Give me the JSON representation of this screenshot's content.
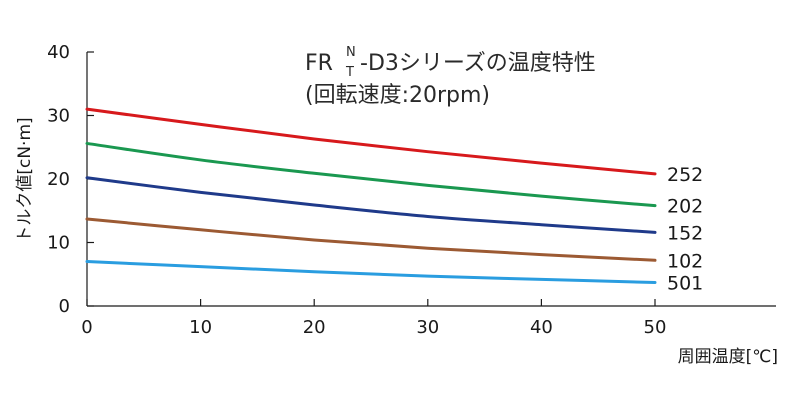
{
  "chart_data": {
    "type": "line",
    "title": {
      "prefix": "FR",
      "superscript": "N",
      "subscript": "T",
      "suffix": "-D3シリーズの温度特性",
      "subtitle": "(回転速度:20rpm)"
    },
    "xlabel": "周囲温度[℃]",
    "ylabel": "トルク値[cN·m]",
    "xlim": [
      0,
      50
    ],
    "ylim": [
      0,
      40
    ],
    "xticks": [
      "0",
      "10",
      "20",
      "30",
      "40",
      "50"
    ],
    "yticks": [
      "0",
      "10",
      "20",
      "30",
      "40"
    ],
    "grid": false,
    "x": [
      0,
      10,
      20,
      30,
      40,
      50
    ],
    "series": [
      {
        "name": "252",
        "color": "#d7191c",
        "values": [
          31.0,
          28.6,
          26.3,
          24.3,
          22.5,
          20.8
        ]
      },
      {
        "name": "202",
        "color": "#1a9850",
        "values": [
          25.6,
          23.0,
          20.9,
          19.0,
          17.3,
          15.8
        ]
      },
      {
        "name": "152",
        "color": "#1f3a8a",
        "values": [
          20.2,
          17.9,
          15.9,
          14.1,
          12.8,
          11.6
        ]
      },
      {
        "name": "102",
        "color": "#9c5a33",
        "values": [
          13.7,
          12.0,
          10.4,
          9.1,
          8.1,
          7.2
        ]
      },
      {
        "name": "501",
        "color": "#2a9de0",
        "values": [
          7.0,
          6.2,
          5.4,
          4.7,
          4.2,
          3.7
        ]
      }
    ]
  }
}
